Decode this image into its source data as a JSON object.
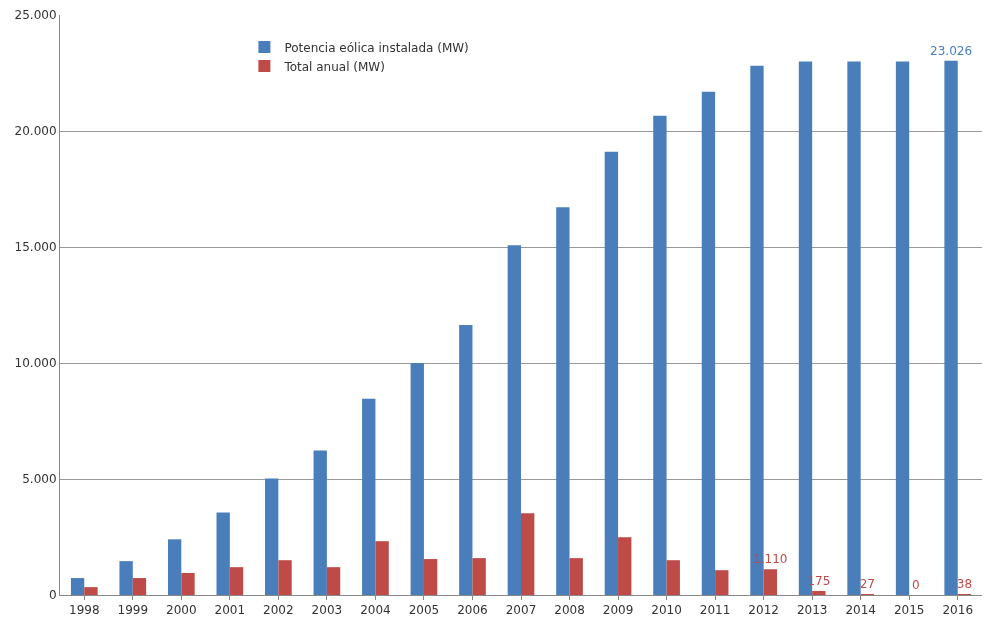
{
  "chart_data": {
    "type": "bar",
    "categories": [
      "1998",
      "1999",
      "2000",
      "2001",
      "2002",
      "2003",
      "2004",
      "2005",
      "2006",
      "2007",
      "2008",
      "2009",
      "2010",
      "2011",
      "2012",
      "2013",
      "2014",
      "2015",
      "2016"
    ],
    "series": [
      {
        "name": "Potencia eólica instalada (MW)",
        "color": "#4a7ebb",
        "values": [
          730,
          1460,
          2400,
          3560,
          5020,
          6230,
          8460,
          10000,
          11640,
          15080,
          16710,
          19110,
          20660,
          21690,
          22810,
          23000,
          23000,
          23000,
          23026
        ],
        "value_labels": [
          null,
          null,
          null,
          null,
          null,
          null,
          null,
          null,
          null,
          null,
          null,
          null,
          null,
          null,
          null,
          null,
          null,
          null,
          "23.026"
        ]
      },
      {
        "name": "Total anual (MW)",
        "color": "#be4b48",
        "values": [
          340,
          730,
          950,
          1200,
          1500,
          1200,
          2320,
          1550,
          1590,
          3520,
          1590,
          2490,
          1500,
          1070,
          1110,
          175,
          27,
          0,
          38
        ],
        "value_labels": [
          null,
          null,
          null,
          null,
          null,
          null,
          null,
          null,
          null,
          null,
          null,
          null,
          null,
          null,
          "1.110",
          "175",
          "27",
          "0",
          "38"
        ]
      }
    ],
    "ylim": [
      0,
      25000
    ],
    "yticks": [
      {
        "value": 0,
        "label": "0"
      },
      {
        "value": 5000,
        "label": "5.000"
      },
      {
        "value": 10000,
        "label": "10.000"
      },
      {
        "value": 15000,
        "label": "15.000"
      },
      {
        "value": 20000,
        "label": "20.000"
      },
      {
        "value": 25000,
        "label": "25.000"
      }
    ],
    "grid": "y",
    "legend": "top left"
  }
}
